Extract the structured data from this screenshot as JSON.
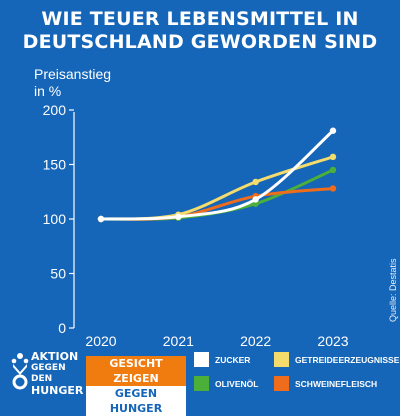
{
  "header": {
    "title_line1": "WIE TEUER LEBENSMITTEL IN",
    "title_line2": "DEUTSCHLAND GEWORDEN SIND"
  },
  "source": "Quelle: Destatis",
  "brand": {
    "line1": "AKTION",
    "line2": "GEGEN DEN",
    "line3": "HUNGER",
    "badge_line1": "GESICHT ZEIGEN",
    "badge_line2": "GEGEN HUNGER",
    "accent_color": "#f07c10",
    "background_color": "#1565b8"
  },
  "chart_data": {
    "type": "line",
    "title": "",
    "ylabel_line1": "Preisanstieg",
    "ylabel_line2": "in %",
    "xlabel": "",
    "x": [
      "2020",
      "2021",
      "2022",
      "2023"
    ],
    "ylim": [
      0,
      200
    ],
    "yticks": [
      0,
      50,
      100,
      150,
      200
    ],
    "grid": false,
    "legend_placement": "bottom",
    "series": [
      {
        "name": "ZUCKER",
        "color": "#ffffff",
        "values": [
          100,
          102,
          118,
          181
        ]
      },
      {
        "name": "GETREIDEERZEUGNISSE",
        "color": "#f4dc6c",
        "values": [
          100,
          104,
          134,
          157
        ]
      },
      {
        "name": "OLIVENÖL",
        "color": "#4caf3a",
        "values": [
          100,
          101,
          114,
          145
        ]
      },
      {
        "name": "SCHWEINEFLEISCH",
        "color": "#ef6c1c",
        "values": [
          100,
          102,
          121,
          128
        ]
      }
    ]
  }
}
